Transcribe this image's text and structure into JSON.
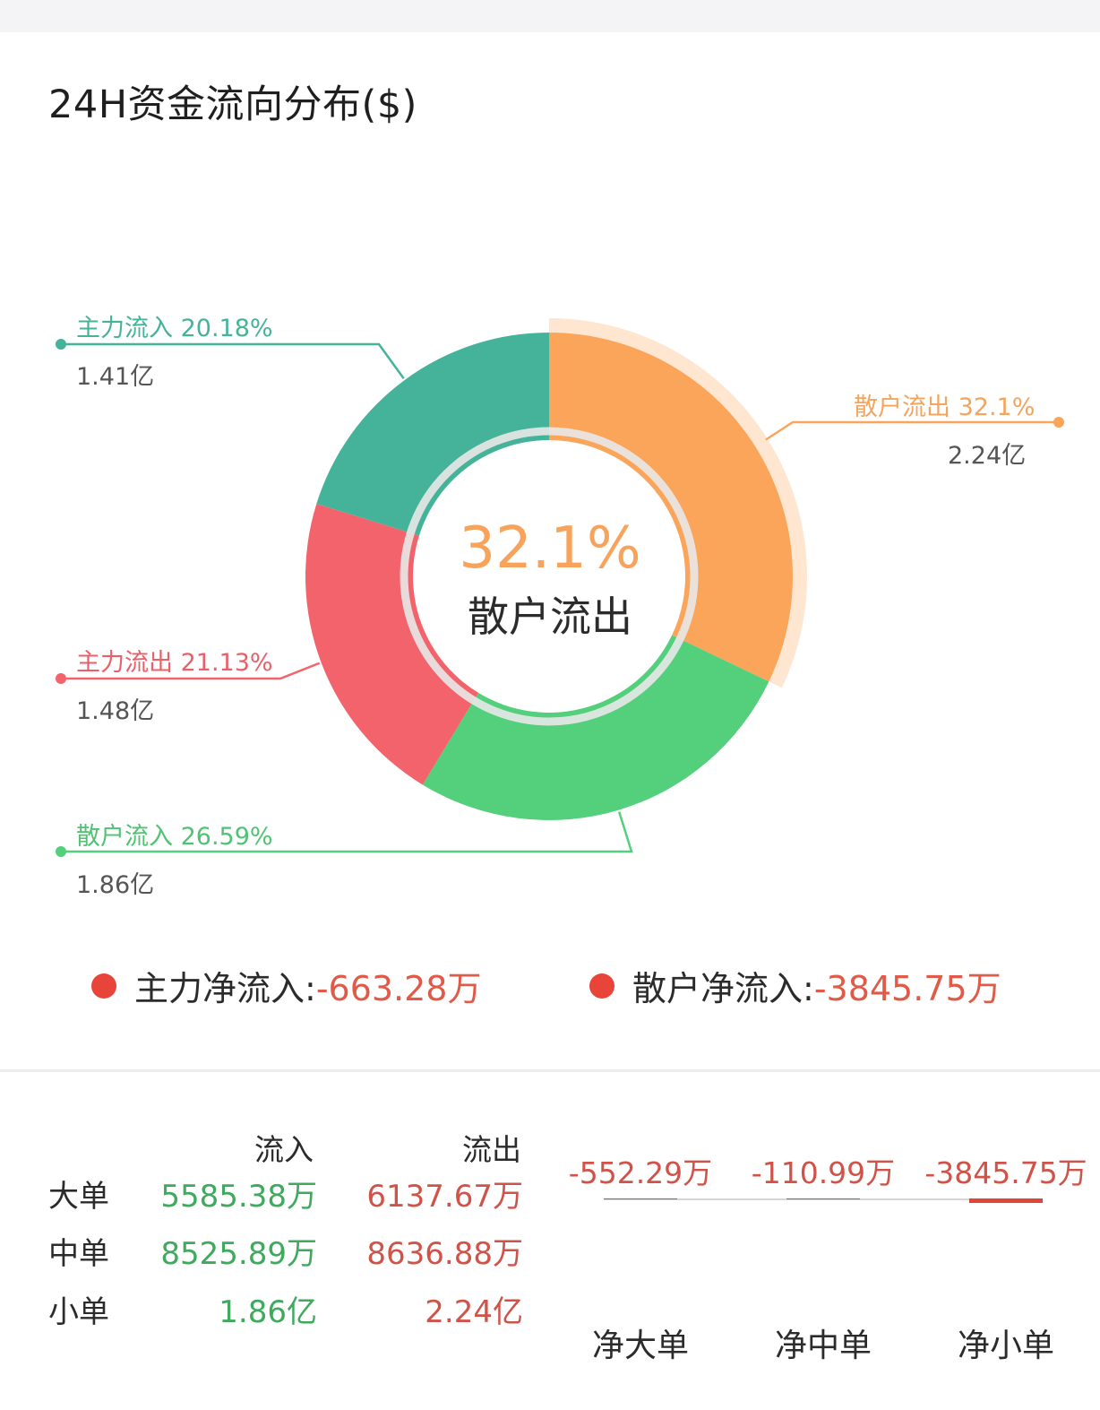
{
  "title": "24H资金流向分布($)",
  "colors": {
    "main_in": "#45b39a",
    "main_out": "#f2636b",
    "retail_in": "#54cf7b",
    "retail_out": "#fba55a",
    "net_dot": "#e8443a",
    "negative": "#d0534a"
  },
  "chart_data": [
    {
      "type": "pie",
      "variant": "donut",
      "highlight": "散户流出",
      "center_value": "32.1%",
      "center_label": "散户流出",
      "slices": [
        {
          "name": "散户流出",
          "pct": 32.1,
          "pct_label": "32.1%",
          "amount": "2.24亿",
          "color": "#fba55a"
        },
        {
          "name": "散户流入",
          "pct": 26.59,
          "pct_label": "26.59%",
          "amount": "1.86亿",
          "color": "#54cf7b"
        },
        {
          "name": "主力流出",
          "pct": 21.13,
          "pct_label": "21.13%",
          "amount": "1.48亿",
          "color": "#f2636b"
        },
        {
          "name": "主力流入",
          "pct": 20.18,
          "pct_label": "20.18%",
          "amount": "1.41亿",
          "color": "#45b39a"
        }
      ]
    },
    {
      "type": "bar",
      "categories": [
        "净大单",
        "净中单",
        "净小单"
      ],
      "values": [
        -552.29,
        -110.99,
        -3845.75
      ],
      "value_labels": [
        "-552.29万",
        "-110.99万",
        "-3845.75万"
      ],
      "unit": "万"
    }
  ],
  "net": {
    "main_label": "主力净流入:",
    "main_value": "-663.28万",
    "retail_label": "散户净流入:",
    "retail_value": "-3845.75万"
  },
  "table": {
    "header_in": "流入",
    "header_out": "流出",
    "rows": [
      {
        "label": "大单",
        "in": "5585.38万",
        "out": "6137.67万"
      },
      {
        "label": "中单",
        "in": "8525.89万",
        "out": "8636.88万"
      },
      {
        "label": "小单",
        "in": "1.86亿",
        "out": "2.24亿"
      }
    ]
  }
}
